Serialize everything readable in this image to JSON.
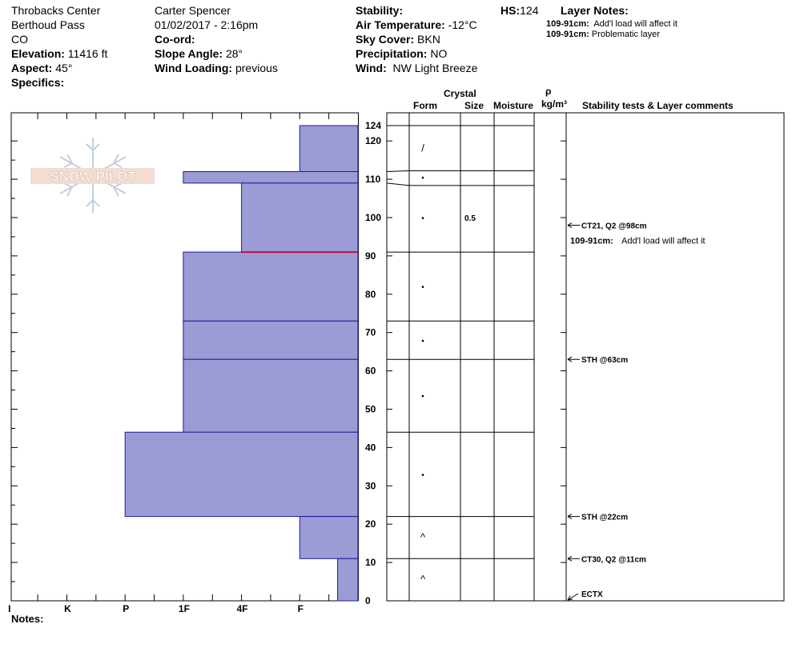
{
  "header": {
    "location": "Throbacks Center",
    "area": "Berthoud Pass",
    "state": "CO",
    "elevation_label": "Elevation:",
    "elevation": "11416 ft",
    "aspect_label": "Aspect:",
    "aspect": "45°",
    "specifics_label": "Specifics:",
    "observer": "Carter Spencer",
    "datetime": "01/02/2017 - 2:16pm",
    "coord_label": "Co-ord:",
    "slope_label": "Slope Angle:",
    "slope": "28°",
    "wind_loading_label": "Wind Loading:",
    "wind_loading": "previous",
    "stability_label": "Stability:",
    "air_temp_label": "Air Temperature:",
    "air_temp": "-12°C",
    "sky_label": "Sky Cover:",
    "sky": "BKN",
    "precip_label": "Precipitation:",
    "precip": "NO",
    "wind_label": "Wind:",
    "wind": "NW Light Breeze",
    "hs_label": "HS:",
    "hs": "124",
    "layer_notes_label": "Layer Notes:",
    "layer_notes": [
      {
        "range": "109-91cm:",
        "text": "Add'l load will affect it"
      },
      {
        "range": "109-91cm:",
        "text": "Problematic layer"
      }
    ]
  },
  "logo_text": "SNOW PILOT",
  "columns": {
    "crystal": "Crystal",
    "form": "Form",
    "size": "Size",
    "moisture": "Moisture",
    "rho": "ρ",
    "density_unit": "kg/m³",
    "comments": "Stability tests & Layer comments"
  },
  "notes_label": "Notes:",
  "chart_data": {
    "type": "bar",
    "orientation": "horizontal",
    "y_axis": {
      "range": [
        0,
        124
      ],
      "ticks": [
        0,
        10,
        20,
        30,
        40,
        50,
        60,
        70,
        80,
        90,
        100,
        110,
        120,
        124
      ]
    },
    "x_axis": {
      "categories": [
        "I",
        "K",
        "P",
        "1F",
        "4F",
        "F"
      ],
      "direction": "reversed"
    },
    "hardness_scale": [
      {
        "code": "I",
        "value": 6
      },
      {
        "code": "K",
        "value": 5
      },
      {
        "code": "P",
        "value": 4
      },
      {
        "code": "1F",
        "value": 3
      },
      {
        "code": "4F",
        "value": 2
      },
      {
        "code": "F",
        "value": 1
      }
    ],
    "layers": [
      {
        "top": 124,
        "bottom": 112,
        "hardness": 1,
        "form": "/",
        "size": "",
        "moisture": ""
      },
      {
        "top": 112,
        "bottom": 109,
        "hardness": 3,
        "form": "•",
        "size": "",
        "moisture": ""
      },
      {
        "top": 109,
        "bottom": 91,
        "hardness": 2,
        "form": "•",
        "size": "0.5",
        "moisture": ""
      },
      {
        "top": 91,
        "bottom": 73,
        "hardness": 3,
        "form": "•",
        "size": "",
        "moisture": ""
      },
      {
        "top": 73,
        "bottom": 63,
        "hardness": 3,
        "form": "•",
        "size": "",
        "moisture": ""
      },
      {
        "top": 63,
        "bottom": 44,
        "hardness": 3,
        "form": "•",
        "size": "",
        "moisture": ""
      },
      {
        "top": 44,
        "bottom": 22,
        "hardness": 4,
        "form": "•",
        "size": "",
        "moisture": ""
      },
      {
        "top": 22,
        "bottom": 11,
        "hardness": 1,
        "form": "^",
        "size": "",
        "moisture": ""
      },
      {
        "top": 11,
        "bottom": 0,
        "hardness": 0.35,
        "form": "^",
        "size": "",
        "moisture": ""
      }
    ],
    "problem_layer_depth": 91,
    "stability_tests": [
      {
        "depth": 98,
        "label": "CT21, Q2 @98cm"
      },
      {
        "depth": 63,
        "label": "STH @63cm"
      },
      {
        "depth": 22,
        "label": "STH @22cm"
      },
      {
        "depth": 11,
        "label": "CT30, Q2 @11cm"
      },
      {
        "depth": 0,
        "label": "ECTX"
      }
    ],
    "layer_comment": {
      "depth": 94,
      "range": "109-91cm:",
      "text": "Add'l load will affect it"
    }
  }
}
